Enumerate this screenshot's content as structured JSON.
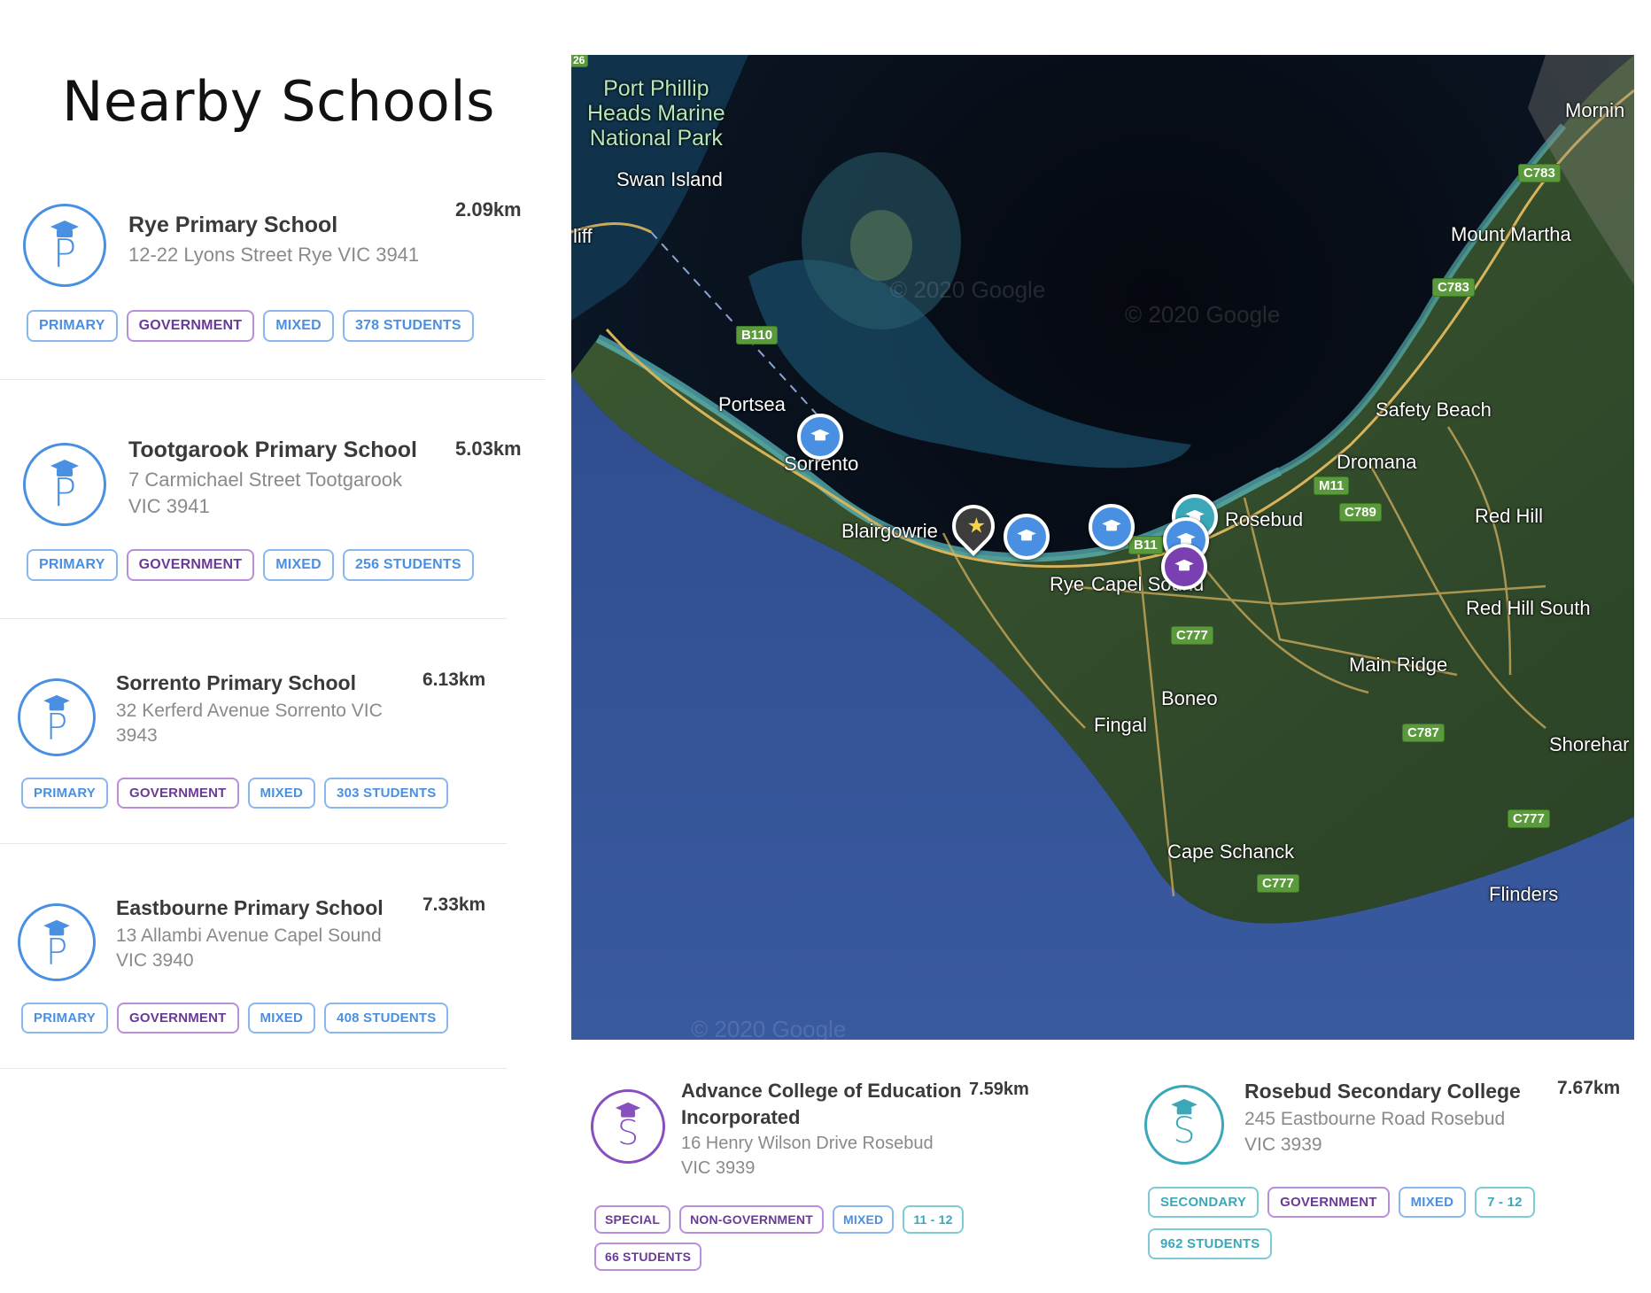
{
  "page": {
    "title": "Nearby Schools"
  },
  "schools": [
    {
      "name": "Rye Primary School",
      "address": "12-22 Lyons Street Rye VIC 3941",
      "distance": "2.09km",
      "icon_letter": "P",
      "tags": [
        "PRIMARY",
        "GOVERNMENT",
        "MIXED",
        "378 STUDENTS"
      ]
    },
    {
      "name": "Tootgarook Primary School",
      "address_line1": "7 Carmichael Street Tootgarook",
      "address_line2": "VIC 3941",
      "distance": "5.03km",
      "icon_letter": "P",
      "tags": [
        "PRIMARY",
        "GOVERNMENT",
        "MIXED",
        "256 STUDENTS"
      ]
    },
    {
      "name": "Sorrento Primary School",
      "address_line1": "32 Kerferd Avenue Sorrento VIC",
      "address_line2": "3943",
      "distance": "6.13km",
      "icon_letter": "P",
      "tags": [
        "PRIMARY",
        "GOVERNMENT",
        "MIXED",
        "303 STUDENTS"
      ]
    },
    {
      "name": "Eastbourne Primary School",
      "address_line1": "13 Allambi Avenue Capel Sound",
      "address_line2": "VIC 3940",
      "distance": "7.33km",
      "icon_letter": "P",
      "tags": [
        "PRIMARY",
        "GOVERNMENT",
        "MIXED",
        "408 STUDENTS"
      ]
    },
    {
      "name_line1": "Advance College of Education",
      "name_line2": "Incorporated",
      "address_line1": "16 Henry Wilson Drive Rosebud",
      "address_line2": "VIC 3939",
      "distance": "7.59km",
      "icon_letter": "S",
      "tags": [
        "SPECIAL",
        "NON-GOVERNMENT",
        "MIXED",
        "11 - 12",
        "66 STUDENTS"
      ]
    },
    {
      "name": "Rosebud Secondary College",
      "address_line1": "245 Eastbourne Road Rosebud",
      "address_line2": "VIC 3939",
      "distance": "7.67km",
      "icon_letter": "S",
      "tags": [
        "SECONDARY",
        "GOVERNMENT",
        "MIXED",
        "7 - 12",
        "962 STUDENTS"
      ]
    }
  ],
  "map": {
    "watermark": "© 2020 Google",
    "edge_number": "26",
    "places": {
      "park_line1": "Port Phillip",
      "park_line2": "Heads Marine",
      "park_line3": "National Park",
      "swan_island": "Swan Island",
      "cliff": "liff",
      "portsea": "Portsea",
      "sorrento": "Sorrento",
      "blairgowrie": "Blairgowrie",
      "rye": "Rye",
      "capel_sound": "Capel Sound",
      "rosebud": "Rosebud",
      "dromana": "Dromana",
      "safety_beach": "Safety Beach",
      "mount_martha": "Mount Martha",
      "mornington": "Mornin",
      "red_hill": "Red Hill",
      "red_hill_south": "Red Hill South",
      "main_ridge": "Main Ridge",
      "boneo": "Boneo",
      "fingal": "Fingal",
      "cape_schanck": "Cape Schanck",
      "shoreham": "Shorehar",
      "flinders": "Flinders"
    },
    "roads": {
      "b110": "B110",
      "b11": "B11",
      "m11": "M11",
      "c789": "C789",
      "c783a": "C783",
      "c783b": "C783",
      "c777a": "C777",
      "c777b": "C777",
      "c777c": "C777",
      "c787": "C787"
    }
  },
  "colors": {
    "primary_blue": "#4a90e2",
    "government_purple": "#6a3a99",
    "special_purple": "#8a4fbf",
    "secondary_teal": "#3aa8b8"
  }
}
